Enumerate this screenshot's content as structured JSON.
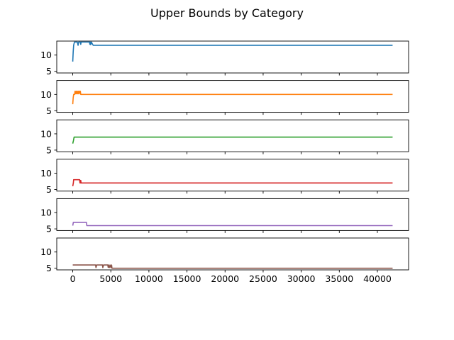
{
  "chart_data": {
    "type": "line",
    "title": "Upper Bounds by Category",
    "xlabel": "",
    "ylabel": "",
    "xlim": [
      -2100,
      44100
    ],
    "x_ticks": [
      0,
      5000,
      10000,
      15000,
      20000,
      25000,
      30000,
      35000,
      40000
    ],
    "x_tick_labels": [
      "0",
      "5000",
      "10000",
      "15000",
      "20000",
      "25000",
      "30000",
      "35000",
      "40000"
    ],
    "shared_y": true,
    "ylim": [
      4.5,
      14.3
    ],
    "y_ticks": [
      5,
      10
    ],
    "y_tick_labels": [
      "5",
      "10"
    ],
    "grid": false,
    "legend": "none",
    "series": [
      {
        "color": "#1f77b4",
        "points": [
          [
            0,
            8
          ],
          [
            60,
            11
          ],
          [
            120,
            13
          ],
          [
            220,
            14
          ],
          [
            600,
            14
          ],
          [
            700,
            13
          ],
          [
            780,
            14
          ],
          [
            1000,
            14
          ],
          [
            1050,
            13.3
          ],
          [
            1100,
            14
          ],
          [
            2200,
            14
          ],
          [
            2250,
            13.3
          ],
          [
            2300,
            14
          ],
          [
            2350,
            13.2
          ],
          [
            2450,
            14
          ],
          [
            2600,
            13.3
          ],
          [
            2700,
            13
          ],
          [
            42000,
            13
          ]
        ]
      },
      {
        "color": "#ff7f0e",
        "points": [
          [
            0,
            7
          ],
          [
            60,
            9
          ],
          [
            120,
            10
          ],
          [
            250,
            10
          ],
          [
            300,
            11
          ],
          [
            400,
            10.2
          ],
          [
            450,
            11
          ],
          [
            550,
            10.2
          ],
          [
            600,
            11
          ],
          [
            700,
            10.2
          ],
          [
            750,
            11
          ],
          [
            850,
            10.2
          ],
          [
            900,
            11
          ],
          [
            1000,
            11
          ],
          [
            1050,
            10
          ],
          [
            42000,
            10
          ]
        ]
      },
      {
        "color": "#2ca02c",
        "points": [
          [
            0,
            7
          ],
          [
            100,
            8
          ],
          [
            180,
            9
          ],
          [
            42000,
            9
          ]
        ]
      },
      {
        "color": "#d62728",
        "points": [
          [
            0,
            6
          ],
          [
            80,
            7
          ],
          [
            120,
            8
          ],
          [
            900,
            8
          ],
          [
            950,
            7
          ],
          [
            1000,
            7
          ],
          [
            1050,
            7.8
          ],
          [
            1100,
            7
          ],
          [
            42000,
            7
          ]
        ]
      },
      {
        "color": "#9467bd",
        "points": [
          [
            0,
            6
          ],
          [
            80,
            7
          ],
          [
            1800,
            7
          ],
          [
            1850,
            6
          ],
          [
            42000,
            6
          ]
        ]
      },
      {
        "color": "#8c564b",
        "points": [
          [
            0,
            6
          ],
          [
            3000,
            6
          ],
          [
            3050,
            5.2
          ],
          [
            3150,
            6
          ],
          [
            3900,
            6
          ],
          [
            3950,
            5.2
          ],
          [
            4050,
            6
          ],
          [
            4600,
            6
          ],
          [
            4650,
            5.3
          ],
          [
            4700,
            6
          ],
          [
            4800,
            5.2
          ],
          [
            4900,
            6
          ],
          [
            5000,
            5.2
          ],
          [
            5100,
            6
          ],
          [
            5150,
            5
          ],
          [
            42000,
            5
          ]
        ]
      }
    ]
  }
}
